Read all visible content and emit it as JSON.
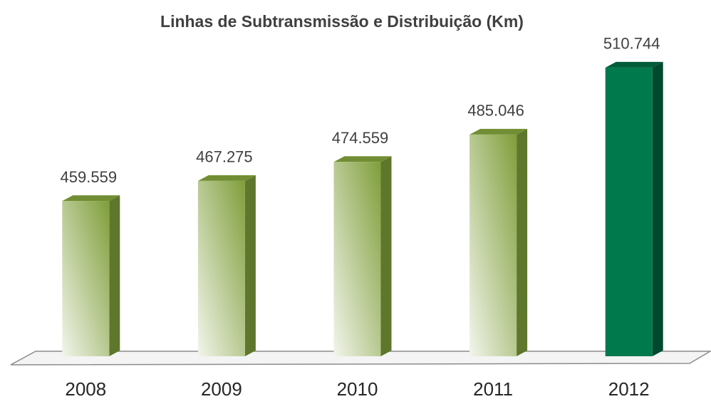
{
  "chart_data": {
    "type": "bar3d",
    "title": "Linhas de Subtransmissão e Distribuição (Km)",
    "categories": [
      "2008",
      "2009",
      "2010",
      "2011",
      "2012"
    ],
    "values": [
      459559,
      467275,
      474559,
      485046,
      510744
    ],
    "value_labels": [
      "459.559",
      "467.275",
      "474.559",
      "485.046",
      "510.744"
    ],
    "colors": [
      "#7f9e3a",
      "#7f9e3a",
      "#7f9e3a",
      "#7f9e3a",
      "#007a4d"
    ],
    "ylim": [
      400000,
      520000
    ]
  }
}
